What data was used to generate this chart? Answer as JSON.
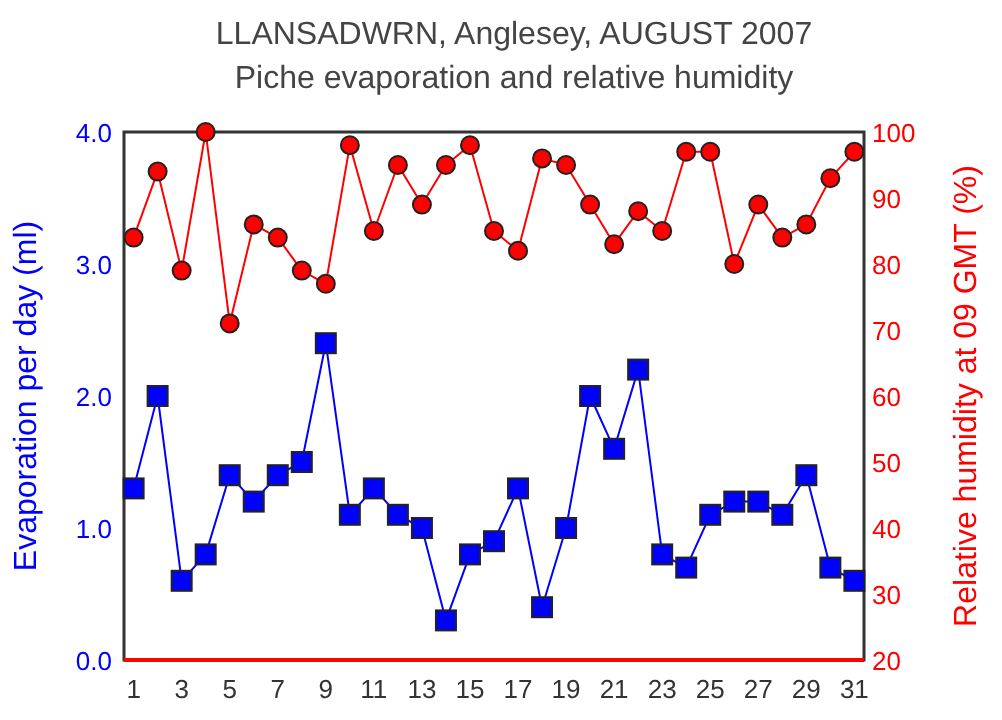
{
  "chart_data": {
    "type": "line",
    "title": "LLANSADWRN, Anglesey, AUGUST 2007",
    "subtitle": "Piche evaporation and relative humidity",
    "ylabel": "Evaporation per day (ml)",
    "y2label": "Relative humidity at 09 GMT (%)",
    "x": [
      1,
      2,
      3,
      4,
      5,
      6,
      7,
      8,
      9,
      10,
      11,
      12,
      13,
      14,
      15,
      16,
      17,
      18,
      19,
      20,
      21,
      22,
      23,
      24,
      25,
      26,
      27,
      28,
      29,
      30,
      31
    ],
    "xlim": [
      0.6,
      31.4
    ],
    "xticks": [
      1,
      3,
      5,
      7,
      9,
      11,
      13,
      15,
      17,
      19,
      21,
      23,
      25,
      27,
      29,
      31
    ],
    "ylim": [
      0,
      4
    ],
    "yticks": [
      {
        "value": 0,
        "label": "0.0"
      },
      {
        "value": 1,
        "label": "1.0"
      },
      {
        "value": 2,
        "label": "2.0"
      },
      {
        "value": 3,
        "label": "3.0"
      },
      {
        "value": 4,
        "label": "4.0"
      }
    ],
    "y2lim": [
      20,
      100
    ],
    "y2ticks": [
      20,
      30,
      40,
      50,
      60,
      70,
      80,
      90,
      100
    ],
    "grid": false,
    "series": [
      {
        "color": "#0000ff",
        "marker": "square",
        "values": [
          1.3,
          2.0,
          0.6,
          0.8,
          1.4,
          1.2,
          1.4,
          1.5,
          2.4,
          1.1,
          1.3,
          1.1,
          1.0,
          0.3,
          0.8,
          0.9,
          1.3,
          0.4,
          1.0,
          2.0,
          1.6,
          2.2,
          0.8,
          0.7,
          1.1,
          1.2,
          1.2,
          1.1,
          1.4,
          0.7,
          0.6
        ]
      },
      {
        "color": "#ff0000",
        "marker": "circle",
        "axis": "y2",
        "values": [
          84,
          94,
          79,
          100,
          71,
          86,
          84,
          79,
          77,
          98,
          85,
          95,
          89,
          95,
          98,
          85,
          82,
          96,
          95,
          89,
          83,
          88,
          85,
          97,
          97,
          80,
          89,
          84,
          86,
          93,
          97
        ]
      }
    ]
  }
}
